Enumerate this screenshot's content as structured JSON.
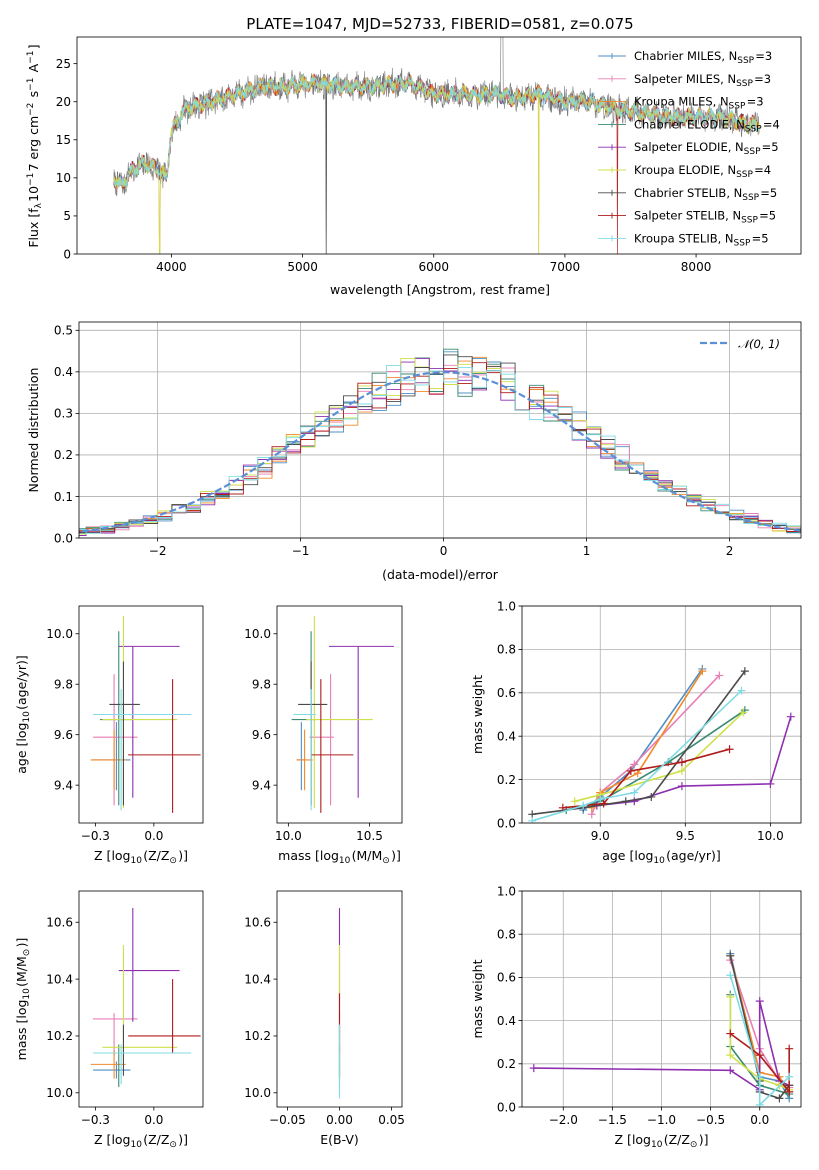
{
  "page_title": "PLATE=1047, MJD=52733, FIBERID=0581, z=0.075",
  "colors": {
    "Chabrier MILES": "#4f8fc5",
    "Salpeter MILES": "#e87fb4",
    "Kroupa MILES": "#f08a2c",
    "Chabrier ELODIE": "#3a8a74",
    "Salpeter ELODIE": "#8e2fb0",
    "Kroupa ELODIE": "#cfe04a",
    "Chabrier STELIB": "#4b4b4b",
    "Salpeter STELIB": "#b01c1c",
    "Kroupa STELIB": "#7fdbe4",
    "normal": "#5b8fd6"
  },
  "chart_data": [
    {
      "id": "spectrum",
      "type": "line",
      "title": "PLATE=1047, MJD=52733, FIBERID=0581, z=0.075",
      "xlabel": "wavelength [Angstrom, rest frame]",
      "ylabel": "Flux [f_λ10^-17 erg cm^-2 s^-1 A^-1]",
      "xlim": [
        3280,
        8800
      ],
      "ylim": [
        0,
        28.5
      ],
      "xticks": [
        4000,
        5000,
        6000,
        7000,
        8000
      ],
      "yticks": [
        0,
        5,
        10,
        15,
        20,
        25
      ],
      "legend_position": "top-right",
      "legend": [
        {
          "label": "Chabrier MILES, N",
          "sub": "SSP",
          "tail": "=3"
        },
        {
          "label": "Salpeter MILES, N",
          "sub": "SSP",
          "tail": "=3"
        },
        {
          "label": "Kroupa MILES, N",
          "sub": "SSP",
          "tail": "=3"
        },
        {
          "label": "Chabrier ELODIE, N",
          "sub": "SSP",
          "tail": "=4"
        },
        {
          "label": "Salpeter ELODIE, N",
          "sub": "SSP",
          "tail": "=5"
        },
        {
          "label": "Kroupa ELODIE, N",
          "sub": "SSP",
          "tail": "=4"
        },
        {
          "label": "Chabrier STELIB, N",
          "sub": "SSP",
          "tail": "=5"
        },
        {
          "label": "Salpeter STELIB, N",
          "sub": "SSP",
          "tail": "=5"
        },
        {
          "label": "Kroupa STELIB, N",
          "sub": "SSP",
          "tail": "=5"
        }
      ],
      "continuum": [
        [
          3560,
          10
        ],
        [
          3620,
          9
        ],
        [
          3700,
          11
        ],
        [
          3800,
          12
        ],
        [
          3900,
          11
        ],
        [
          3960,
          10
        ],
        [
          4000,
          16
        ],
        [
          4100,
          19
        ],
        [
          4300,
          20
        ],
        [
          4500,
          21
        ],
        [
          4700,
          22
        ],
        [
          4900,
          22
        ],
        [
          5100,
          22.5
        ],
        [
          5300,
          22
        ],
        [
          5500,
          22
        ],
        [
          5800,
          22.5
        ],
        [
          6000,
          21
        ],
        [
          6300,
          21
        ],
        [
          6500,
          21
        ],
        [
          6600,
          20.5
        ],
        [
          6800,
          21
        ],
        [
          7000,
          20
        ],
        [
          7200,
          20
        ],
        [
          7400,
          19
        ],
        [
          7600,
          18.5
        ],
        [
          7800,
          18
        ],
        [
          8000,
          18
        ],
        [
          8200,
          18
        ],
        [
          8400,
          17
        ]
      ],
      "x_data_start": 3560,
      "x_data_end": 8480
    },
    {
      "id": "residuals",
      "type": "histogram",
      "xlabel": "(data-model)/error",
      "ylabel": "Normed distribution",
      "xlim": [
        -2.55,
        2.5
      ],
      "ylim": [
        0,
        0.52
      ],
      "xticks": [
        -2,
        -1,
        0,
        1,
        2
      ],
      "yticks": [
        0.0,
        0.1,
        0.2,
        0.3,
        0.4,
        0.5
      ],
      "legend_position": "top-right",
      "legend_label": "𝒩(0, 1)",
      "normal_pdf": {
        "mu": 0,
        "sigma": 1
      }
    },
    {
      "id": "age_vs_Z",
      "type": "scatter",
      "xlabel": "Z [log10(Z/Z⊙)]",
      "ylabel": "age  [log10(age/yr)]",
      "xlim": [
        -0.32,
        0.21
      ],
      "ylim": [
        9.25,
        10.11
      ],
      "xticks": [
        -0.25,
        0.0
      ],
      "yticks": [
        9.4,
        9.6,
        9.8,
        10.0
      ],
      "points": [
        {
          "model": "Chabrier MILES",
          "x": -0.16,
          "xerr": [
            0.1,
            0.06
          ],
          "y": 9.5,
          "yerr": [
            0.12,
            0.15
          ]
        },
        {
          "model": "Salpeter MILES",
          "x": -0.17,
          "xerr": [
            0.09,
            0.1
          ],
          "y": 9.59,
          "yerr": [
            0.27,
            0.25
          ]
        },
        {
          "model": "Kroupa MILES",
          "x": -0.17,
          "xerr": [
            0.1,
            0.05
          ],
          "y": 9.5,
          "yerr": [
            0.12,
            0.12
          ]
        },
        {
          "model": "Chabrier ELODIE",
          "x": -0.15,
          "xerr": [
            0.08,
            0.06
          ],
          "y": 9.66,
          "yerr": [
            0.34,
            0.35
          ]
        },
        {
          "model": "Salpeter ELODIE",
          "x": -0.09,
          "xerr": [
            0.06,
            0.2
          ],
          "y": 9.95,
          "yerr": [
            0.6,
            0.0
          ]
        },
        {
          "model": "Kroupa ELODIE",
          "x": -0.13,
          "xerr": [
            0.09,
            0.23
          ],
          "y": 9.66,
          "yerr": [
            0.35,
            0.41
          ]
        },
        {
          "model": "Chabrier STELIB",
          "x": -0.13,
          "xerr": [
            0.06,
            0.07
          ],
          "y": 9.72,
          "yerr": [
            0.4,
            0.17
          ]
        },
        {
          "model": "Salpeter STELIB",
          "x": 0.08,
          "xerr": [
            0.19,
            0.12
          ],
          "y": 9.52,
          "yerr": [
            0.23,
            0.3
          ]
        },
        {
          "model": "Kroupa STELIB",
          "x": -0.14,
          "xerr": [
            0.12,
            0.3
          ],
          "y": 9.68,
          "yerr": [
            0.38,
            0.1
          ]
        }
      ]
    },
    {
      "id": "age_vs_mass",
      "type": "scatter",
      "xlabel": "mass [log10(M/M⊙)]",
      "ylabel": "",
      "xlim": [
        9.93,
        10.7
      ],
      "ylim": [
        9.25,
        10.11
      ],
      "xticks": [
        10.0,
        10.5
      ],
      "yticks": [
        9.4,
        9.6,
        9.8,
        10.0
      ],
      "points": [
        {
          "model": "Chabrier MILES",
          "x": 10.08,
          "xerr": [
            0.03,
            0.03
          ],
          "y": 9.5,
          "yerr": [
            0.12,
            0.15
          ]
        },
        {
          "model": "Salpeter MILES",
          "x": 10.26,
          "xerr": [
            0.13,
            0.02
          ],
          "y": 9.59,
          "yerr": [
            0.27,
            0.25
          ]
        },
        {
          "model": "Kroupa MILES",
          "x": 10.1,
          "xerr": [
            0.05,
            0.05
          ],
          "y": 9.5,
          "yerr": [
            0.12,
            0.12
          ]
        },
        {
          "model": "Chabrier ELODIE",
          "x": 10.14,
          "xerr": [
            0.12,
            0.03
          ],
          "y": 9.66,
          "yerr": [
            0.34,
            0.35
          ]
        },
        {
          "model": "Salpeter ELODIE",
          "x": 10.43,
          "xerr": [
            0.18,
            0.22
          ],
          "y": 9.95,
          "yerr": [
            0.6,
            0.0
          ]
        },
        {
          "model": "Kroupa ELODIE",
          "x": 10.16,
          "xerr": [
            0.05,
            0.36
          ],
          "y": 9.66,
          "yerr": [
            0.35,
            0.41
          ]
        },
        {
          "model": "Chabrier STELIB",
          "x": 10.14,
          "xerr": [
            0.08,
            0.1
          ],
          "y": 9.72,
          "yerr": [
            0.4,
            0.17
          ]
        },
        {
          "model": "Salpeter STELIB",
          "x": 10.2,
          "xerr": [
            0.06,
            0.2
          ],
          "y": 9.52,
          "yerr": [
            0.23,
            0.3
          ]
        },
        {
          "model": "Kroupa STELIB",
          "x": 10.14,
          "xerr": [
            0.11,
            0.03
          ],
          "y": 9.68,
          "yerr": [
            0.38,
            0.1
          ]
        }
      ]
    },
    {
      "id": "mass_weight_vs_age",
      "type": "line",
      "xlabel": "age  [log10(age/yr)]",
      "ylabel": "mass weight",
      "xlim": [
        8.54,
        10.18
      ],
      "ylim": [
        0,
        1.0
      ],
      "xticks": [
        9.0,
        9.5,
        10.0
      ],
      "yticks": [
        0.0,
        0.2,
        0.4,
        0.6,
        0.8,
        1.0
      ],
      "grid": true,
      "series": [
        {
          "model": "Chabrier MILES",
          "x": [
            8.9,
            9.0,
            9.18,
            9.6
          ],
          "y": [
            0.06,
            0.12,
            0.24,
            0.71
          ]
        },
        {
          "model": "Salpeter MILES",
          "x": [
            8.95,
            9.0,
            9.2,
            9.7
          ],
          "y": [
            0.04,
            0.14,
            0.27,
            0.68
          ]
        },
        {
          "model": "Kroupa MILES",
          "x": [
            8.95,
            9.0,
            9.22,
            9.6
          ],
          "y": [
            0.07,
            0.14,
            0.23,
            0.7
          ]
        },
        {
          "model": "Chabrier ELODIE",
          "x": [
            8.8,
            9.0,
            9.4,
            9.85
          ],
          "y": [
            0.06,
            0.1,
            0.28,
            0.52
          ]
        },
        {
          "model": "Salpeter ELODIE",
          "x": [
            8.98,
            9.2,
            9.48,
            10.0,
            10.12
          ],
          "y": [
            0.08,
            0.1,
            0.17,
            0.18,
            0.49
          ]
        },
        {
          "model": "Kroupa ELODIE",
          "x": [
            8.85,
            9.0,
            9.48,
            9.84
          ],
          "y": [
            0.1,
            0.13,
            0.24,
            0.51
          ]
        },
        {
          "model": "Chabrier STELIB",
          "x": [
            8.6,
            8.9,
            9.15,
            9.3,
            9.85
          ],
          "y": [
            0.04,
            0.07,
            0.1,
            0.12,
            0.7
          ]
        },
        {
          "model": "Salpeter STELIB",
          "x": [
            8.78,
            9.02,
            9.18,
            9.48,
            9.76
          ],
          "y": [
            0.07,
            0.09,
            0.24,
            0.28,
            0.34
          ]
        },
        {
          "model": "Kroupa STELIB",
          "x": [
            8.6,
            8.9,
            9.0,
            9.2,
            9.83
          ],
          "y": [
            0.01,
            0.08,
            0.11,
            0.14,
            0.61
          ]
        }
      ]
    },
    {
      "id": "mass_vs_Z",
      "type": "scatter",
      "xlabel": "Z [log10(Z/Z⊙)]",
      "ylabel": "mass [log10(M/M⊙)]",
      "xlim": [
        -0.32,
        0.21
      ],
      "ylim": [
        9.95,
        10.71
      ],
      "xticks": [
        -0.25,
        0.0
      ],
      "yticks": [
        10.0,
        10.2,
        10.4,
        10.6
      ],
      "points": [
        {
          "model": "Chabrier MILES",
          "x": -0.16,
          "xerr": [
            0.1,
            0.06
          ],
          "y": 10.08,
          "yerr": [
            0.03,
            0.03
          ]
        },
        {
          "model": "Salpeter MILES",
          "x": -0.17,
          "xerr": [
            0.09,
            0.1
          ],
          "y": 10.26,
          "yerr": [
            0.13,
            0.02
          ]
        },
        {
          "model": "Kroupa MILES",
          "x": -0.17,
          "xerr": [
            0.1,
            0.05
          ],
          "y": 10.1,
          "yerr": [
            0.05,
            0.05
          ]
        },
        {
          "model": "Chabrier ELODIE",
          "x": -0.15,
          "xerr": [
            0.08,
            0.06
          ],
          "y": 10.14,
          "yerr": [
            0.12,
            0.03
          ]
        },
        {
          "model": "Salpeter ELODIE",
          "x": -0.09,
          "xerr": [
            0.06,
            0.2
          ],
          "y": 10.43,
          "yerr": [
            0.18,
            0.22
          ]
        },
        {
          "model": "Kroupa ELODIE",
          "x": -0.13,
          "xerr": [
            0.09,
            0.23
          ],
          "y": 10.16,
          "yerr": [
            0.05,
            0.36
          ]
        },
        {
          "model": "Chabrier STELIB",
          "x": -0.13,
          "xerr": [
            0.06,
            0.07
          ],
          "y": 10.14,
          "yerr": [
            0.08,
            0.1
          ]
        },
        {
          "model": "Salpeter STELIB",
          "x": 0.08,
          "xerr": [
            0.19,
            0.12
          ],
          "y": 10.2,
          "yerr": [
            0.06,
            0.2
          ]
        },
        {
          "model": "Kroupa STELIB",
          "x": -0.14,
          "xerr": [
            0.12,
            0.3
          ],
          "y": 10.14,
          "yerr": [
            0.11,
            0.03
          ]
        }
      ]
    },
    {
      "id": "mass_vs_ebv",
      "type": "scatter",
      "xlabel": "E(B-V)",
      "ylabel": "",
      "xlim": [
        -0.06,
        0.06
      ],
      "ylim": [
        9.95,
        10.71
      ],
      "xticks": [
        -0.05,
        0.0,
        0.05
      ],
      "yticks": [
        10.0,
        10.2,
        10.4,
        10.6
      ],
      "points": [
        {
          "model": "Chabrier MILES",
          "x": 0.0,
          "y": 10.08,
          "yerr": [
            0.03,
            0.03
          ]
        },
        {
          "model": "Salpeter MILES",
          "x": 0.0,
          "y": 10.26,
          "yerr": [
            0.13,
            0.02
          ]
        },
        {
          "model": "Kroupa MILES",
          "x": 0.0,
          "y": 10.1,
          "yerr": [
            0.05,
            0.05
          ]
        },
        {
          "model": "Chabrier ELODIE",
          "x": 0.0,
          "y": 10.14,
          "yerr": [
            0.12,
            0.03
          ]
        },
        {
          "model": "Salpeter ELODIE",
          "x": 0.0,
          "y": 10.43,
          "yerr": [
            0.18,
            0.22
          ]
        },
        {
          "model": "Kroupa ELODIE",
          "x": 0.0,
          "y": 10.16,
          "yerr": [
            0.05,
            0.36
          ]
        },
        {
          "model": "Chabrier STELIB",
          "x": 0.0,
          "y": 10.14,
          "yerr": [
            0.08,
            0.1
          ]
        },
        {
          "model": "Salpeter STELIB",
          "x": 0.0,
          "y": 10.2,
          "yerr": [
            0.06,
            0.15
          ]
        },
        {
          "model": "Kroupa STELIB",
          "x": 0.0,
          "y": 10.14,
          "yerr": [
            0.16,
            0.1
          ]
        }
      ]
    },
    {
      "id": "mass_weight_vs_Z",
      "type": "line",
      "xlabel": "Z [log10(Z/Z⊙)]",
      "ylabel": "mass weight",
      "xlim": [
        -2.42,
        0.42
      ],
      "ylim": [
        0,
        1.0
      ],
      "xticks": [
        -2.0,
        -1.5,
        -1.0,
        -0.5,
        0.0
      ],
      "yticks": [
        0.0,
        0.2,
        0.4,
        0.6,
        0.8,
        1.0
      ],
      "grid": true,
      "series": [
        {
          "model": "Chabrier MILES",
          "x": [
            -0.3,
            0.0,
            0.2,
            0.3
          ],
          "y": [
            0.71,
            0.14,
            0.12,
            0.04
          ]
        },
        {
          "model": "Salpeter MILES",
          "x": [
            -0.3,
            0.0,
            0.2,
            0.3
          ],
          "y": [
            0.68,
            0.27,
            0.12,
            0.09
          ]
        },
        {
          "model": "Kroupa MILES",
          "x": [
            -0.3,
            0.0,
            0.2,
            0.3
          ],
          "y": [
            0.7,
            0.16,
            0.14,
            0.07
          ]
        },
        {
          "model": "Chabrier ELODIE",
          "x": [
            -0.3,
            -0.3,
            0.0,
            0.3
          ],
          "y": [
            0.52,
            0.28,
            0.1,
            0.06
          ]
        },
        {
          "model": "Salpeter ELODIE",
          "x": [
            -2.3,
            -0.3,
            0.0,
            0.0,
            0.2,
            0.3
          ],
          "y": [
            0.18,
            0.17,
            0.08,
            0.49,
            0.12,
            0.1
          ]
        },
        {
          "model": "Kroupa ELODIE",
          "x": [
            -0.3,
            -0.3,
            0.0,
            0.2,
            0.3
          ],
          "y": [
            0.51,
            0.24,
            0.13,
            0.1,
            0.08
          ]
        },
        {
          "model": "Chabrier STELIB",
          "x": [
            -0.3,
            0.0,
            0.0,
            0.2,
            0.3
          ],
          "y": [
            0.7,
            0.12,
            0.07,
            0.04,
            0.1
          ]
        },
        {
          "model": "Salpeter STELIB",
          "x": [
            -0.3,
            0.0,
            0.3,
            0.3
          ],
          "y": [
            0.34,
            0.24,
            0.07,
            0.27
          ]
        },
        {
          "model": "Kroupa STELIB",
          "x": [
            -0.3,
            0.0,
            0.0,
            0.3
          ],
          "y": [
            0.61,
            0.14,
            0.01,
            0.14
          ]
        }
      ]
    }
  ]
}
